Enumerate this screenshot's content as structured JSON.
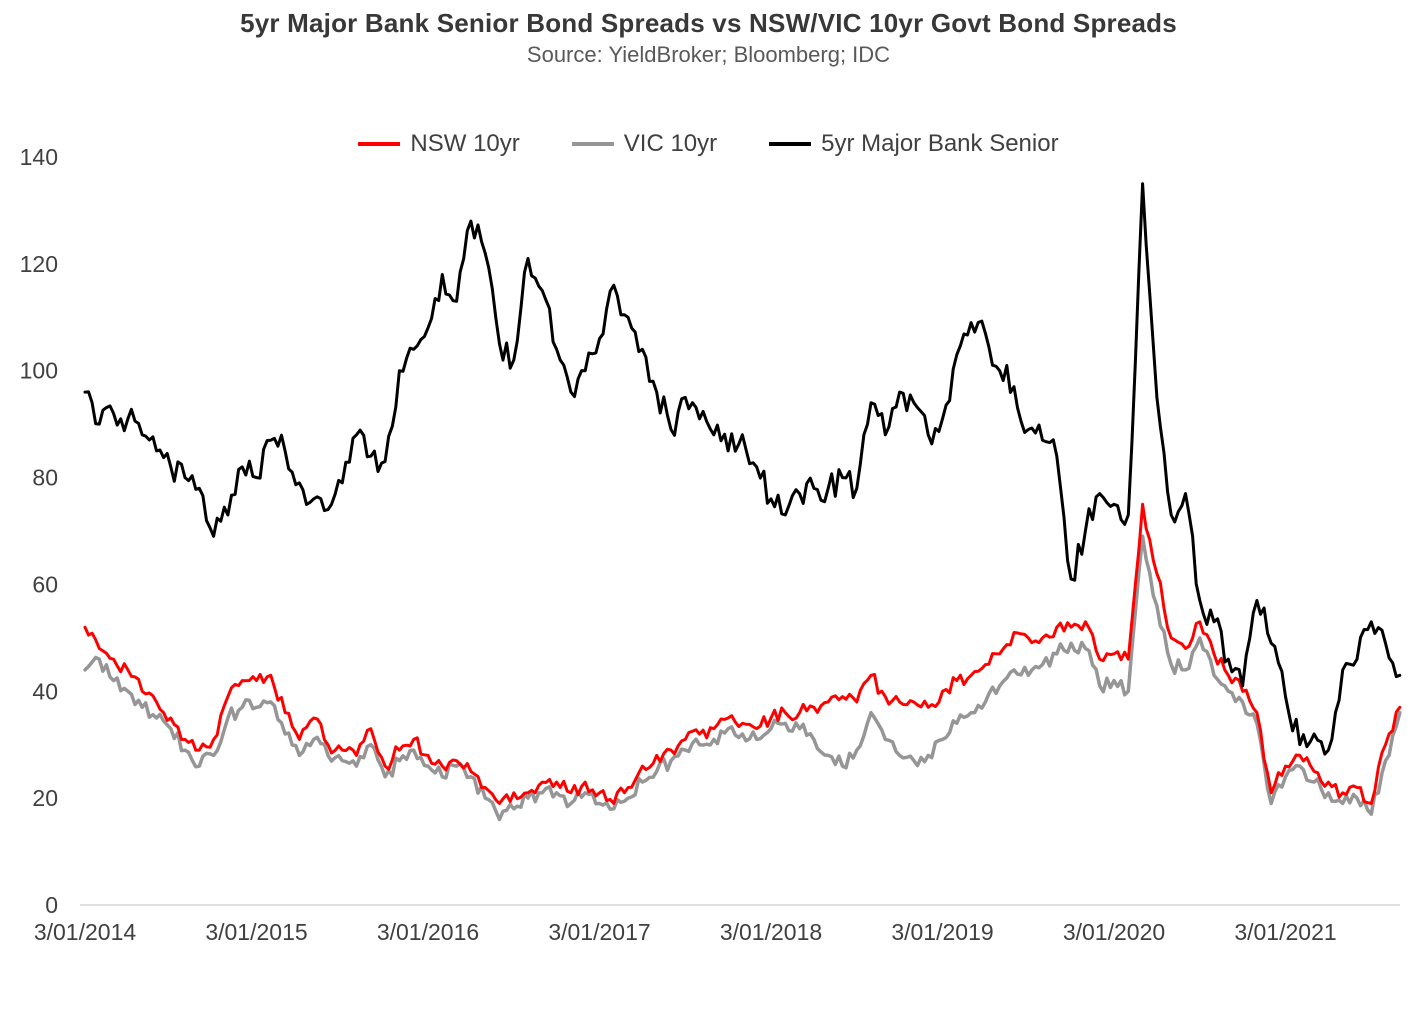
{
  "title": "5yr Major Bank Senior Bond Spreads vs NSW/VIC 10yr Govt Bond Spreads",
  "subtitle": "Source: YieldBroker; Bloomberg; IDC",
  "chart_data": {
    "type": "line",
    "title": "5yr Major Bank Senior Bond Spreads vs NSW/VIC 10yr Govt Bond Spreads",
    "subtitle": "Source: YieldBroker; Bloomberg; IDC",
    "grid": false,
    "legend_position": "top",
    "x_axis": {
      "tick_labels": [
        "3/01/2014",
        "3/01/2015",
        "3/01/2016",
        "3/01/2017",
        "3/01/2018",
        "3/01/2019",
        "3/01/2020",
        "3/01/2021"
      ],
      "sampling": "monthly estimates, Jan 2014 through Sep 2021",
      "points_per_series": 93
    },
    "y_axis": {
      "ticks": [
        0,
        20,
        40,
        60,
        80,
        100,
        120,
        140
      ],
      "ylim": [
        0,
        140
      ]
    },
    "series": [
      {
        "name": "NSW 10yr",
        "color": "#FF0000",
        "values": [
          52,
          48,
          46,
          44,
          40,
          38,
          35,
          31,
          29,
          31,
          39,
          42,
          42,
          43,
          36,
          31,
          35,
          30,
          29,
          28,
          33,
          26,
          29,
          31,
          28,
          26,
          27,
          25,
          22,
          19,
          21,
          21,
          23,
          23,
          21,
          23,
          21,
          19,
          22,
          26,
          28,
          29,
          31,
          32,
          33,
          35,
          34,
          33,
          35,
          36,
          36,
          37,
          38,
          39,
          38,
          43,
          39,
          38,
          38,
          37,
          40,
          42,
          43,
          45,
          47,
          51,
          50,
          50,
          52,
          52,
          53,
          46,
          47,
          46,
          75,
          62,
          50,
          48,
          53,
          47,
          43,
          40,
          36,
          21,
          26,
          28,
          25,
          23,
          21,
          22,
          19,
          30,
          37
        ]
      },
      {
        "name": "VIC 10yr",
        "color": "#969696",
        "values": [
          44,
          46,
          42,
          40,
          37,
          35,
          33,
          29,
          26,
          28,
          35,
          37,
          37,
          38,
          32,
          28,
          31,
          28,
          27,
          26,
          30,
          24,
          27,
          29,
          26,
          24,
          26,
          24,
          20,
          16,
          18,
          20,
          21,
          21,
          19,
          21,
          19,
          18,
          20,
          23,
          25,
          27,
          29,
          30,
          31,
          33,
          32,
          31,
          33,
          34,
          33,
          31,
          28,
          26,
          29,
          36,
          31,
          28,
          27,
          28,
          31,
          34,
          36,
          38,
          41,
          44,
          43,
          45,
          47,
          49,
          48,
          41,
          42,
          40,
          69,
          56,
          45,
          44,
          50,
          43,
          40,
          38,
          34,
          19,
          24,
          26,
          23,
          21,
          19,
          20,
          17,
          27,
          36
        ]
      },
      {
        "name": "5yr Major Bank Senior",
        "color": "#000000",
        "values": [
          96,
          90,
          92,
          91,
          88,
          85,
          82,
          80,
          78,
          69,
          73,
          82,
          80,
          87,
          85,
          79,
          76,
          74,
          79,
          88,
          84,
          83,
          100,
          104,
          108,
          118,
          113,
          128,
          122,
          105,
          102,
          121,
          115,
          104,
          96,
          100,
          106,
          116,
          110,
          104,
          96,
          89,
          95,
          91,
          88,
          85,
          88,
          82,
          76,
          73,
          77,
          78,
          78,
          80,
          78,
          94,
          88,
          96,
          94,
          88,
          91,
          103,
          109,
          107,
          100,
          97,
          89,
          87,
          84,
          61,
          70,
          77,
          75,
          73,
          135,
          95,
          73,
          77,
          57,
          53,
          46,
          41,
          57,
          49,
          39,
          30,
          32,
          29,
          44,
          46,
          53,
          49,
          43
        ]
      }
    ]
  }
}
